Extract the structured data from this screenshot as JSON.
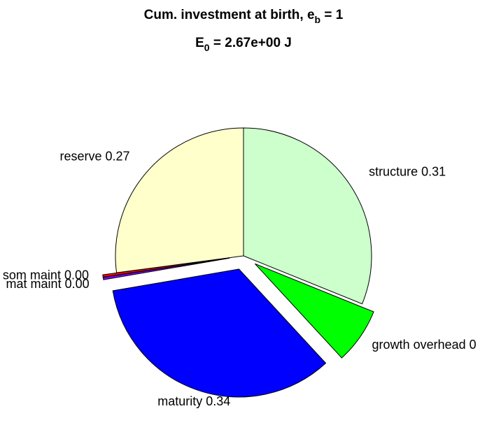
{
  "chart_data": {
    "type": "pie",
    "title_line1": {
      "pre": "Cum. investment at birth, e",
      "sub": "b",
      "post": " = 1"
    },
    "title_line2": {
      "pre": "E",
      "sub": "0",
      "post": " = 2.67e+00 J"
    },
    "slices": [
      {
        "name": "structure",
        "value": 0.31,
        "label": "structure 0.31",
        "color": "#ccffcc",
        "exploded": false
      },
      {
        "name": "growth overhead",
        "value": 0.07,
        "label": "growth overhead 0",
        "color": "#00ff00",
        "exploded": true
      },
      {
        "name": "maturity",
        "value": 0.34,
        "label": "maturity 0.34",
        "color": "#0000ff",
        "exploded": true
      },
      {
        "name": "mat maint",
        "value": 0.003,
        "label": "mat maint 0.00",
        "color": "#7f00ff",
        "exploded": true
      },
      {
        "name": "som maint",
        "value": 0.003,
        "label": "som maint 0.00",
        "color": "#ff0000",
        "exploded": true
      },
      {
        "name": "reserve",
        "value": 0.27,
        "label": "reserve 0.27",
        "color": "#ffffcc",
        "exploded": false
      }
    ]
  }
}
